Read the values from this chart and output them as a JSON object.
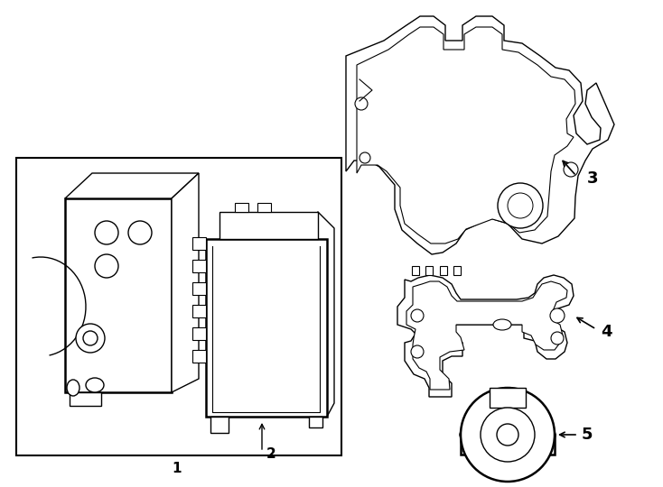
{
  "background_color": "#ffffff",
  "line_color": "#000000",
  "lw": 1.0,
  "lw_thick": 1.8,
  "fig_width": 7.34,
  "fig_height": 5.4,
  "dpi": 100
}
